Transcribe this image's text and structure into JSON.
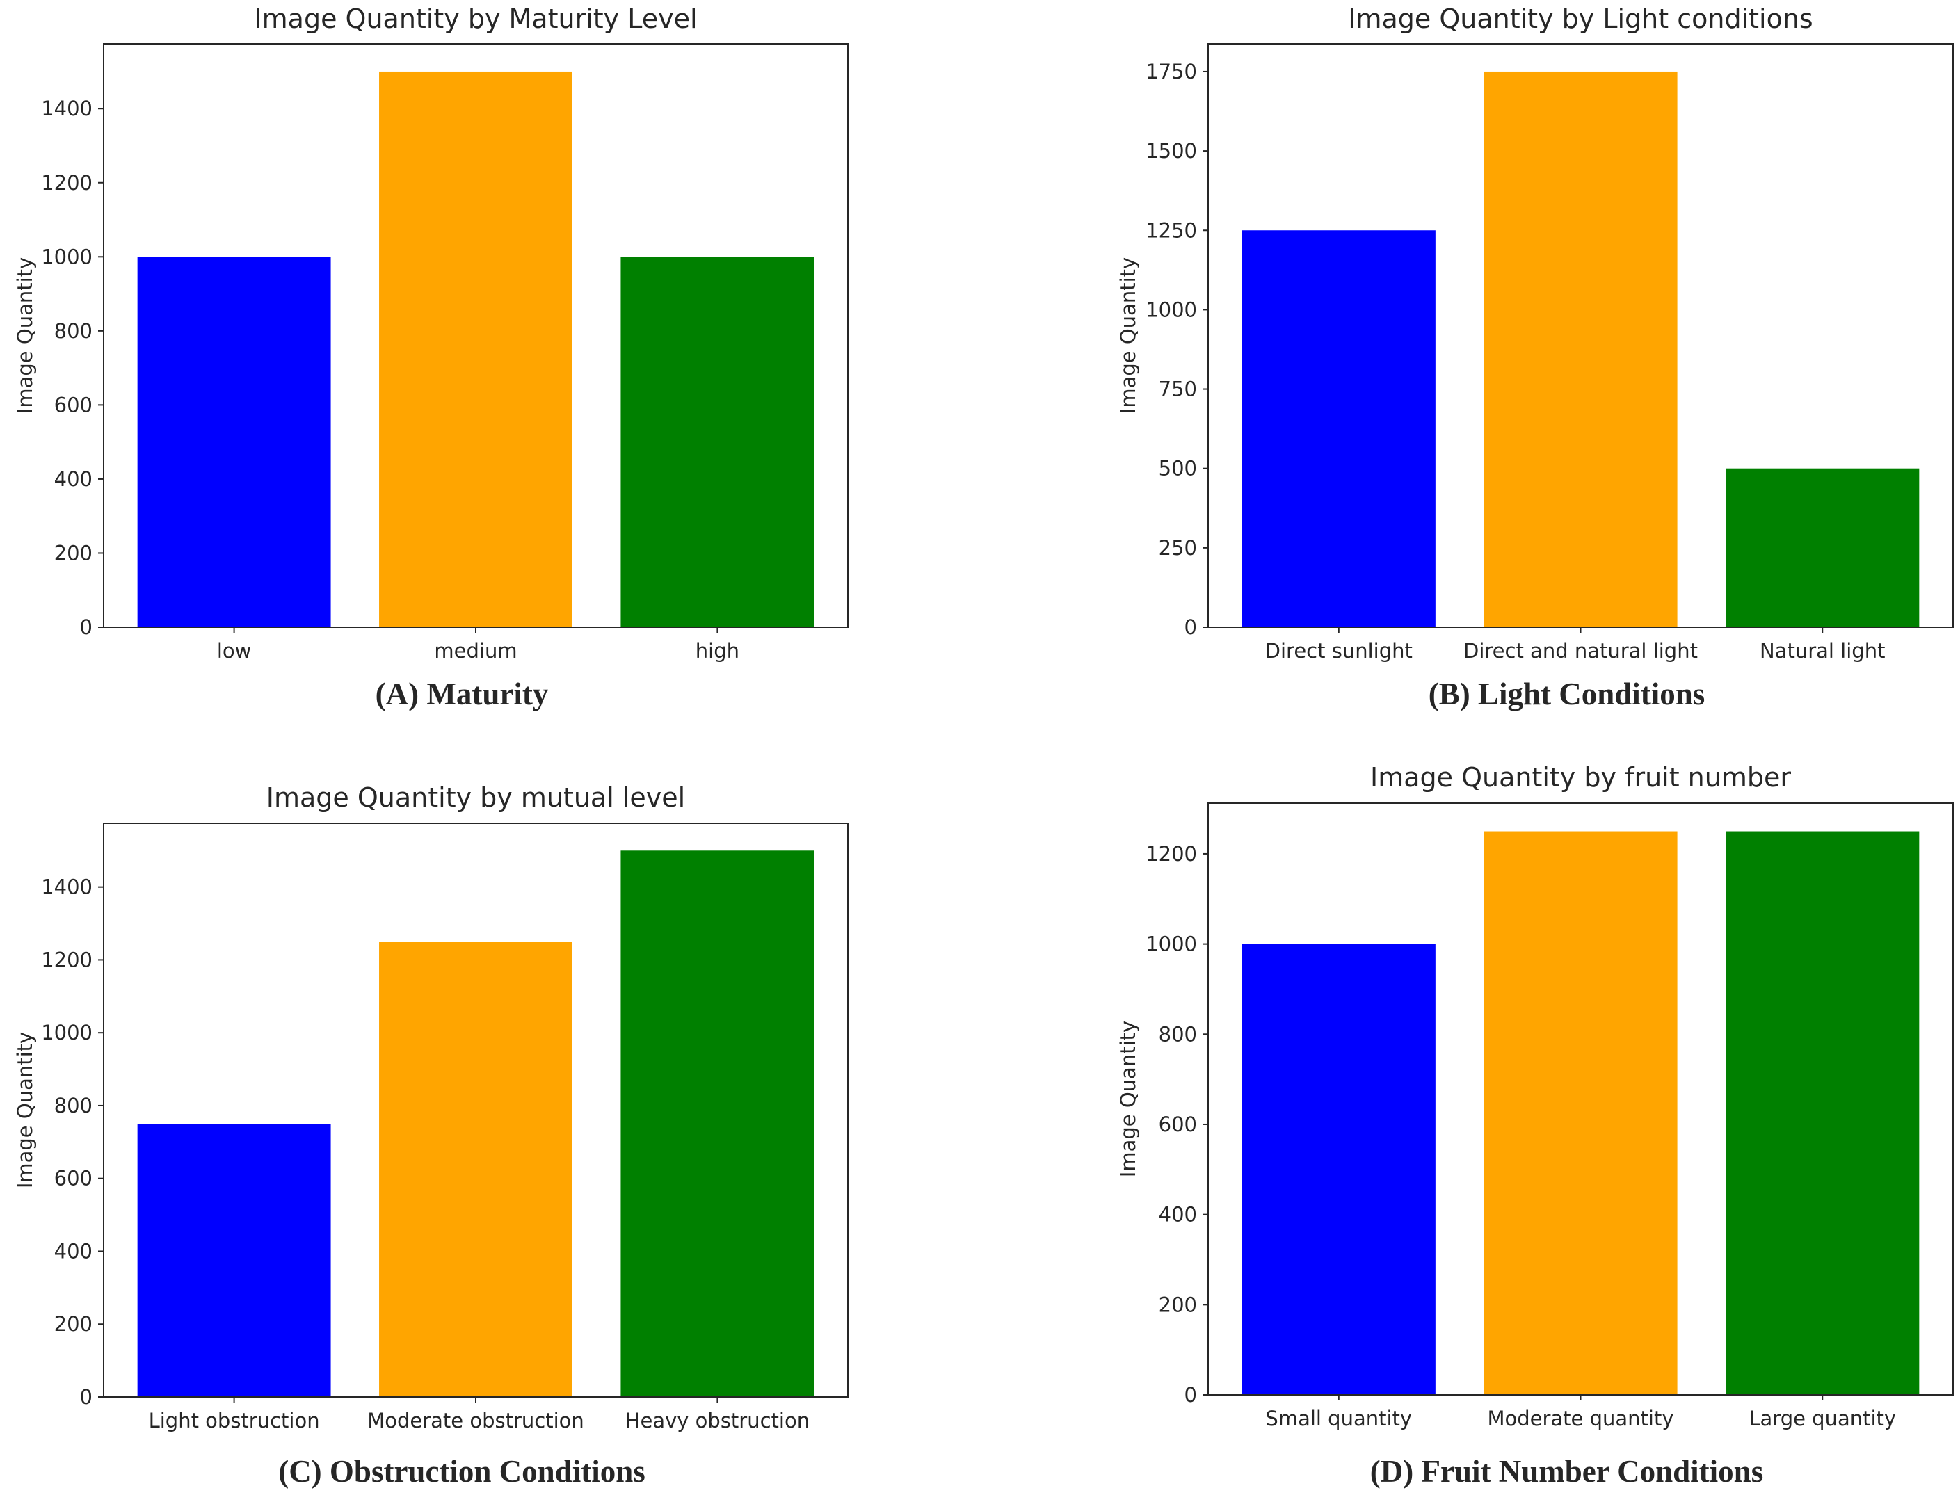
{
  "chart_data": [
    {
      "type": "bar",
      "title": "Image Quantity by Maturity Level",
      "caption": "(A) Maturity",
      "xlabel": "",
      "ylabel": "Image Quantity",
      "categories": [
        "low",
        "medium",
        "high"
      ],
      "values": [
        1000,
        1500,
        1000
      ],
      "colors": [
        "#0000ff",
        "#ffa500",
        "#008000"
      ],
      "ylim": [
        0,
        1575
      ],
      "yticks": [
        0,
        200,
        400,
        600,
        800,
        1000,
        1200,
        1400
      ]
    },
    {
      "type": "bar",
      "title": "Image Quantity by Light conditions",
      "caption": "(B) Light Conditions",
      "xlabel": "",
      "ylabel": "Image Quantity",
      "categories": [
        "Direct sunlight",
        "Direct and natural light",
        "Natural light"
      ],
      "values": [
        1250,
        1750,
        500
      ],
      "colors": [
        "#0000ff",
        "#ffa500",
        "#008000"
      ],
      "ylim": [
        0,
        1837.5
      ],
      "yticks": [
        0,
        250,
        500,
        750,
        1000,
        1250,
        1500,
        1750
      ]
    },
    {
      "type": "bar",
      "title": "Image Quantity by mutual level",
      "caption": "(C) Obstruction Conditions",
      "xlabel": "",
      "ylabel": "Image Quantity",
      "categories": [
        "Light obstruction",
        "Moderate obstruction",
        "Heavy obstruction"
      ],
      "values": [
        750,
        1250,
        1500
      ],
      "colors": [
        "#0000ff",
        "#ffa500",
        "#008000"
      ],
      "ylim": [
        0,
        1575
      ],
      "yticks": [
        0,
        200,
        400,
        600,
        800,
        1000,
        1200,
        1400
      ]
    },
    {
      "type": "bar",
      "title": "Image Quantity by fruit number",
      "caption": "(D) Fruit Number Conditions",
      "xlabel": "",
      "ylabel": "Image Quantity",
      "categories": [
        "Small quantity",
        "Moderate quantity",
        "Large quantity"
      ],
      "values": [
        1000,
        1250,
        1250
      ],
      "colors": [
        "#0000ff",
        "#ffa500",
        "#008000"
      ],
      "ylim": [
        0,
        1312.5
      ],
      "yticks": [
        0,
        200,
        400,
        600,
        800,
        1000,
        1200
      ]
    }
  ]
}
